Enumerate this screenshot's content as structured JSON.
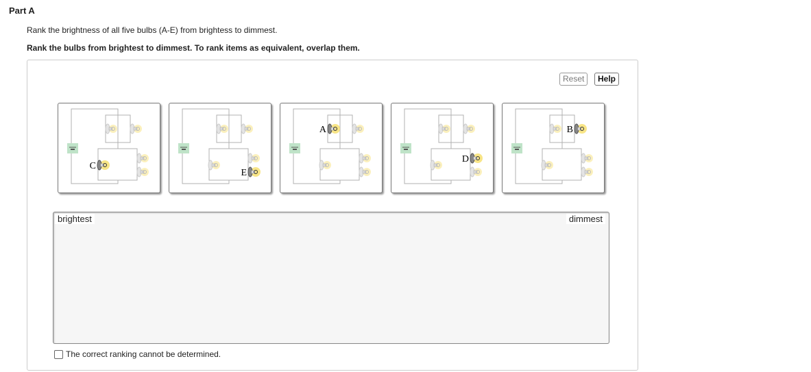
{
  "part_title": "Part A",
  "question": "Rank the brightness of all five bulbs (A-E) from brightess to dimmest.",
  "instruction": "Rank the bulbs from brightest to dimmest. To rank items as equivalent, overlap them.",
  "buttons": {
    "reset": "Reset",
    "help": "Help"
  },
  "cards": [
    {
      "label": "C",
      "highlighted_bulb": "bottom-left"
    },
    {
      "label": "E",
      "highlighted_bulb": "bottom-right-lower"
    },
    {
      "label": "A",
      "highlighted_bulb": "top-left"
    },
    {
      "label": "D",
      "highlighted_bulb": "bottom-right-upper"
    },
    {
      "label": "B",
      "highlighted_bulb": "top-right"
    }
  ],
  "ranking": {
    "left_label": "brightest",
    "right_label": "dimmest"
  },
  "checkbox": {
    "label": "The correct ranking cannot be determined.",
    "checked": false
  },
  "colors": {
    "wire": "#b0b0b0",
    "battery": "#bfe3c8",
    "glow": "#f7e27a"
  }
}
